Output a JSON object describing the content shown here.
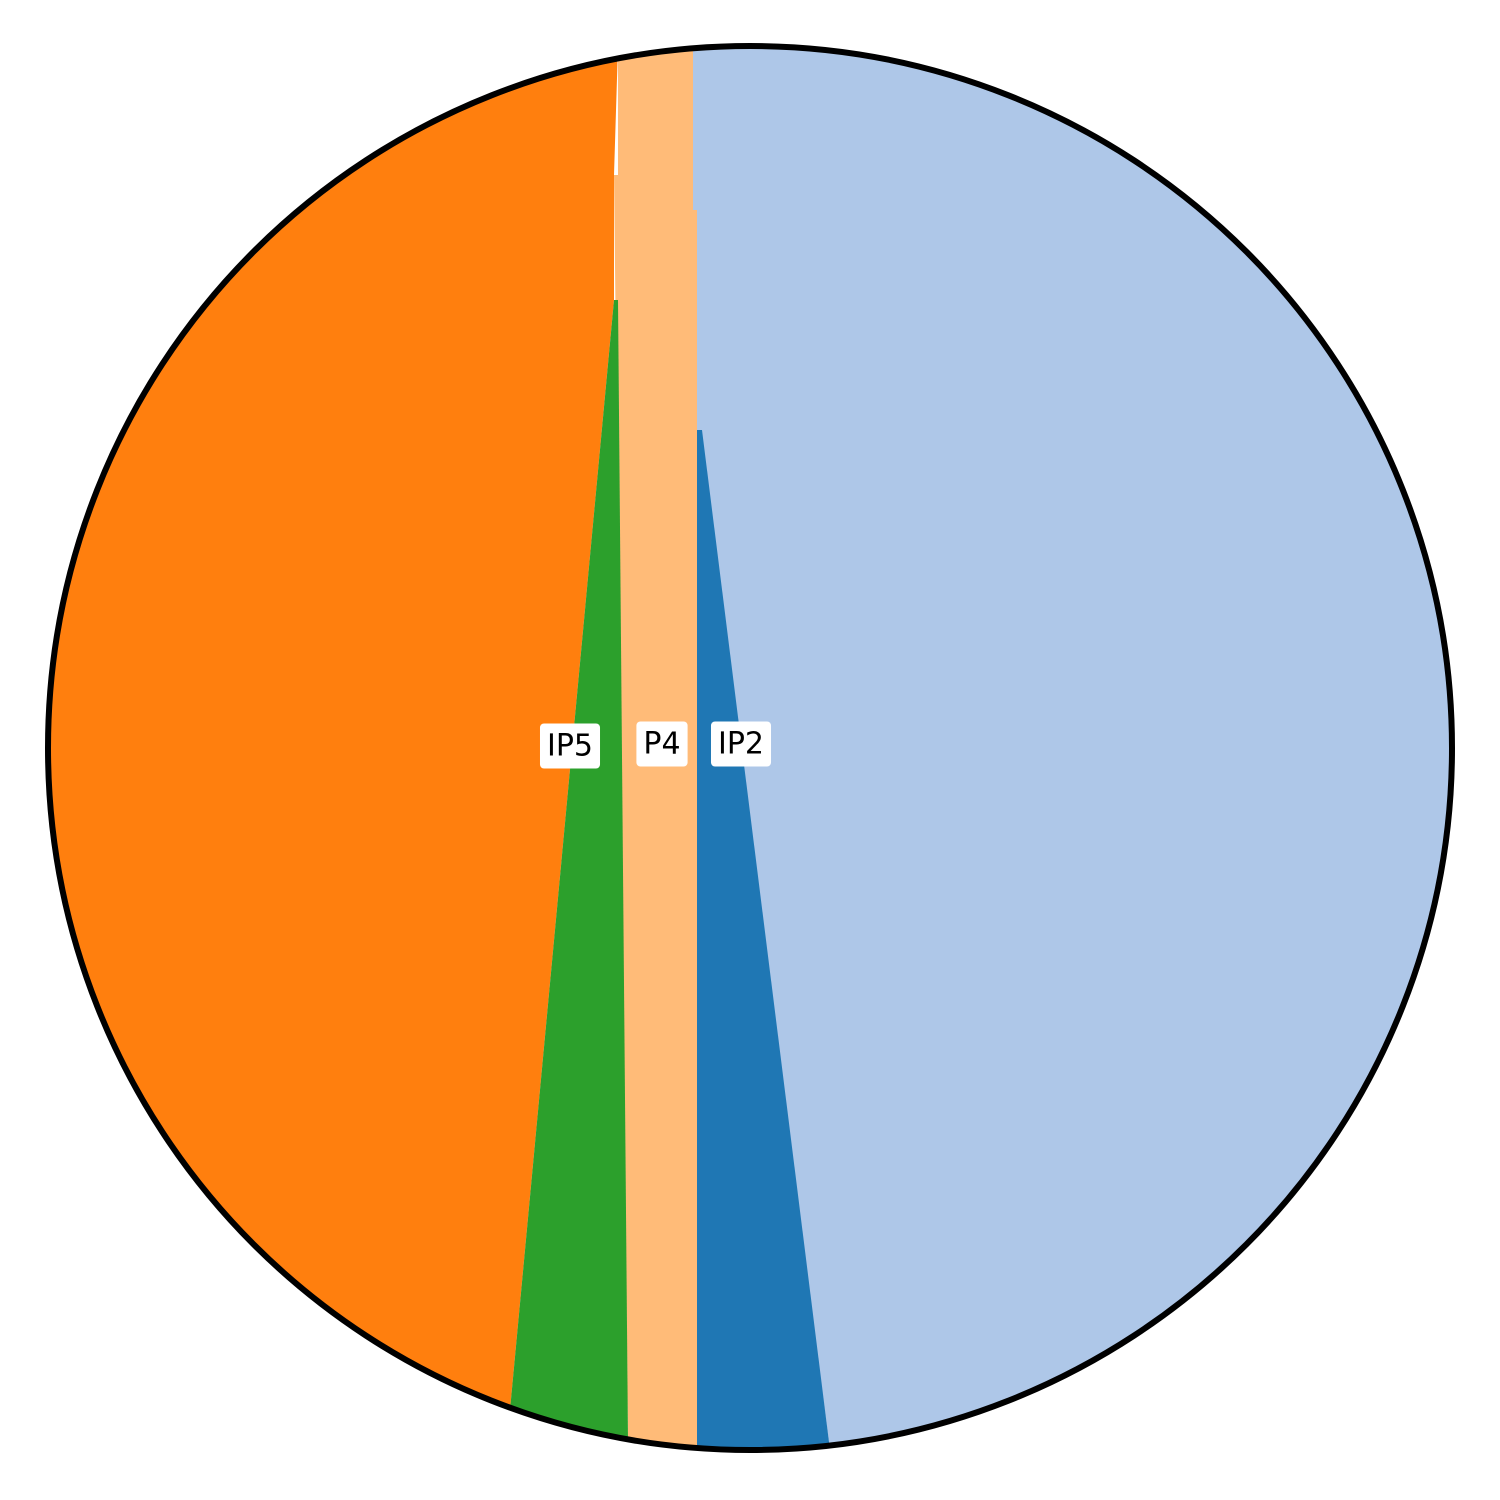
{
  "chart_data": {
    "type": "pie",
    "title": "",
    "xlabel": "",
    "ylabel": "",
    "legend": "none",
    "grid": false,
    "segments": [
      {
        "key": "ip2",
        "label": "IP2",
        "color": "#1f77b4",
        "fraction": 0.03,
        "labeled": true
      },
      {
        "key": "light-blue",
        "label": "",
        "color": "#aec7e8",
        "fraction": 0.47,
        "labeled": false
      },
      {
        "key": "orange",
        "label": "",
        "color": "#ff7f0e",
        "fraction": 0.44,
        "labeled": false
      },
      {
        "key": "ip5",
        "label": "IP5",
        "color": "#2ca02c",
        "fraction": 0.04,
        "labeled": true
      },
      {
        "key": "p4",
        "label": "P4",
        "color": "#ffbb78",
        "fraction": 0.02,
        "labeled": true
      }
    ]
  }
}
